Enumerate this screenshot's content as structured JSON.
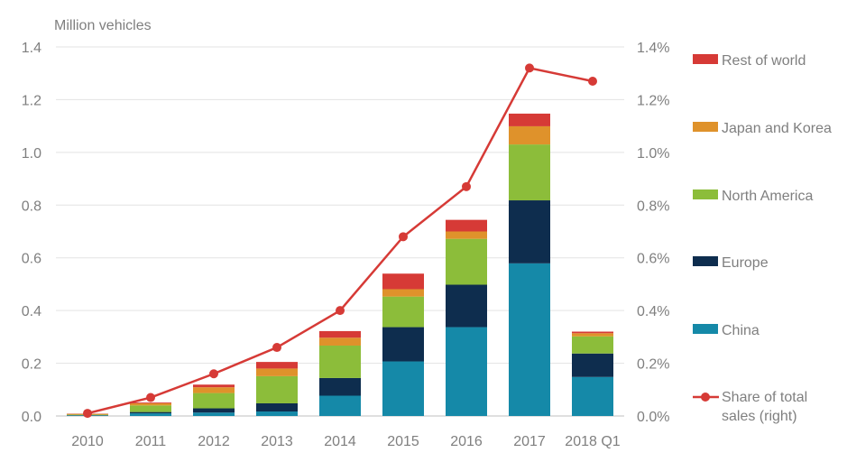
{
  "chart_data": {
    "type": "bar",
    "stacked": true,
    "categories": [
      "2010",
      "2011",
      "2012",
      "2013",
      "2014",
      "2015",
      "2016",
      "2017",
      "2018 Q1"
    ],
    "y_left_label": "Million vehicles",
    "y_left_ticks": [
      "0.0",
      "0.2",
      "0.4",
      "0.6",
      "0.8",
      "1.0",
      "1.2",
      "1.4"
    ],
    "y_left_range": [
      0,
      1.4
    ],
    "y_right_ticks": [
      "0.0%",
      "0.2%",
      "0.4%",
      "0.6%",
      "0.8%",
      "1.0%",
      "1.2%",
      "1.4%"
    ],
    "y_right_range": [
      0,
      1.4
    ],
    "gridlines": true,
    "legend_position": "right",
    "series": [
      {
        "name": "China",
        "color": "#1589a8",
        "values": [
          0.002,
          0.01,
          0.013,
          0.017,
          0.077,
          0.207,
          0.337,
          0.579,
          0.148
        ]
      },
      {
        "name": "Europe",
        "color": "#0e2d4e",
        "values": [
          0.001,
          0.005,
          0.016,
          0.031,
          0.067,
          0.13,
          0.161,
          0.239,
          0.089
        ]
      },
      {
        "name": "North America",
        "color": "#8cbd3a",
        "values": [
          0.002,
          0.025,
          0.058,
          0.103,
          0.123,
          0.116,
          0.174,
          0.212,
          0.065
        ]
      },
      {
        "name": "Japan and Korea",
        "color": "#df922b",
        "values": [
          0.003,
          0.008,
          0.022,
          0.029,
          0.03,
          0.028,
          0.028,
          0.069,
          0.012
        ]
      },
      {
        "name": "Rest of world",
        "color": "#d63a36",
        "values": [
          0.001,
          0.003,
          0.01,
          0.025,
          0.025,
          0.059,
          0.044,
          0.048,
          0.006
        ]
      }
    ],
    "line_series": {
      "name": "Share of total sales (right)",
      "legend_lines": [
        "Share of total",
        "sales (right)"
      ],
      "color": "#d63a36",
      "axis": "right",
      "values": [
        0.01,
        0.07,
        0.16,
        0.26,
        0.4,
        0.68,
        0.87,
        1.32,
        1.27
      ]
    }
  }
}
